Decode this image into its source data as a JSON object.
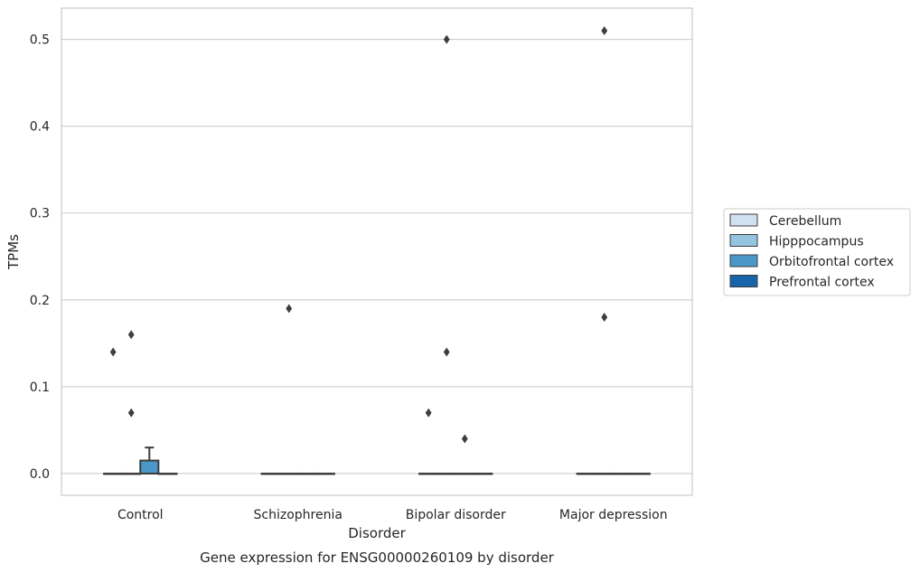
{
  "chart_data": {
    "type": "box",
    "title": "",
    "caption": "Gene expression for ENSG00000260109 by disorder",
    "xlabel": "Disorder",
    "ylabel": "TPMs",
    "ylim": [
      -0.025,
      0.536
    ],
    "yticks": [
      "0.0",
      "0.1",
      "0.2",
      "0.3",
      "0.4",
      "0.5"
    ],
    "ytick_values": [
      0.0,
      0.1,
      0.2,
      0.3,
      0.4,
      0.5
    ],
    "categories": [
      "Control",
      "Schizophrenia",
      "Bipolar disorder",
      "Major depression"
    ],
    "grid": "horizontal",
    "legend_position": "right-outside",
    "series": [
      {
        "name": "Cerebellum",
        "color": "#d0e1f2",
        "boxes": [
          {
            "q1": 0,
            "median": 0,
            "q3": 0,
            "whisker_low": 0,
            "whisker_high": 0,
            "outliers": [
              0.14
            ]
          },
          {
            "q1": 0,
            "median": 0,
            "q3": 0,
            "whisker_low": 0,
            "whisker_high": 0,
            "outliers": []
          },
          {
            "q1": 0,
            "median": 0,
            "q3": 0,
            "whisker_low": 0,
            "whisker_high": 0,
            "outliers": [
              0.07
            ]
          },
          {
            "q1": 0,
            "median": 0,
            "q3": 0,
            "whisker_low": 0,
            "whisker_high": 0,
            "outliers": []
          }
        ]
      },
      {
        "name": "Hipppocampus",
        "color": "#94c4df",
        "boxes": [
          {
            "q1": 0,
            "median": 0,
            "q3": 0,
            "whisker_low": 0,
            "whisker_high": 0,
            "outliers": [
              0.16,
              0.07
            ]
          },
          {
            "q1": 0,
            "median": 0,
            "q3": 0,
            "whisker_low": 0,
            "whisker_high": 0,
            "outliers": [
              0.19
            ]
          },
          {
            "q1": 0,
            "median": 0,
            "q3": 0,
            "whisker_low": 0,
            "whisker_high": 0,
            "outliers": [
              0.5,
              0.14
            ]
          },
          {
            "q1": 0,
            "median": 0,
            "q3": 0,
            "whisker_low": 0,
            "whisker_high": 0,
            "outliers": [
              0.51,
              0.18
            ]
          }
        ]
      },
      {
        "name": "Orbitofrontal cortex",
        "color": "#4a98c9",
        "boxes": [
          {
            "q1": 0,
            "median": 0,
            "q3": 0.015,
            "whisker_low": 0,
            "whisker_high": 0.03,
            "outliers": []
          },
          {
            "q1": 0,
            "median": 0,
            "q3": 0,
            "whisker_low": 0,
            "whisker_high": 0,
            "outliers": []
          },
          {
            "q1": 0,
            "median": 0,
            "q3": 0,
            "whisker_low": 0,
            "whisker_high": 0,
            "outliers": [
              0.04
            ]
          },
          {
            "q1": 0,
            "median": 0,
            "q3": 0,
            "whisker_low": 0,
            "whisker_high": 0,
            "outliers": []
          }
        ]
      },
      {
        "name": "Prefrontal cortex",
        "color": "#1764ab",
        "boxes": [
          {
            "q1": 0,
            "median": 0,
            "q3": 0,
            "whisker_low": 0,
            "whisker_high": 0,
            "outliers": []
          },
          {
            "q1": 0,
            "median": 0,
            "q3": 0,
            "whisker_low": 0,
            "whisker_high": 0,
            "outliers": []
          },
          {
            "q1": 0,
            "median": 0,
            "q3": 0,
            "whisker_low": 0,
            "whisker_high": 0,
            "outliers": []
          },
          {
            "q1": 0,
            "median": 0,
            "q3": 0,
            "whisker_low": 0,
            "whisker_high": 0,
            "outliers": []
          }
        ]
      }
    ]
  }
}
